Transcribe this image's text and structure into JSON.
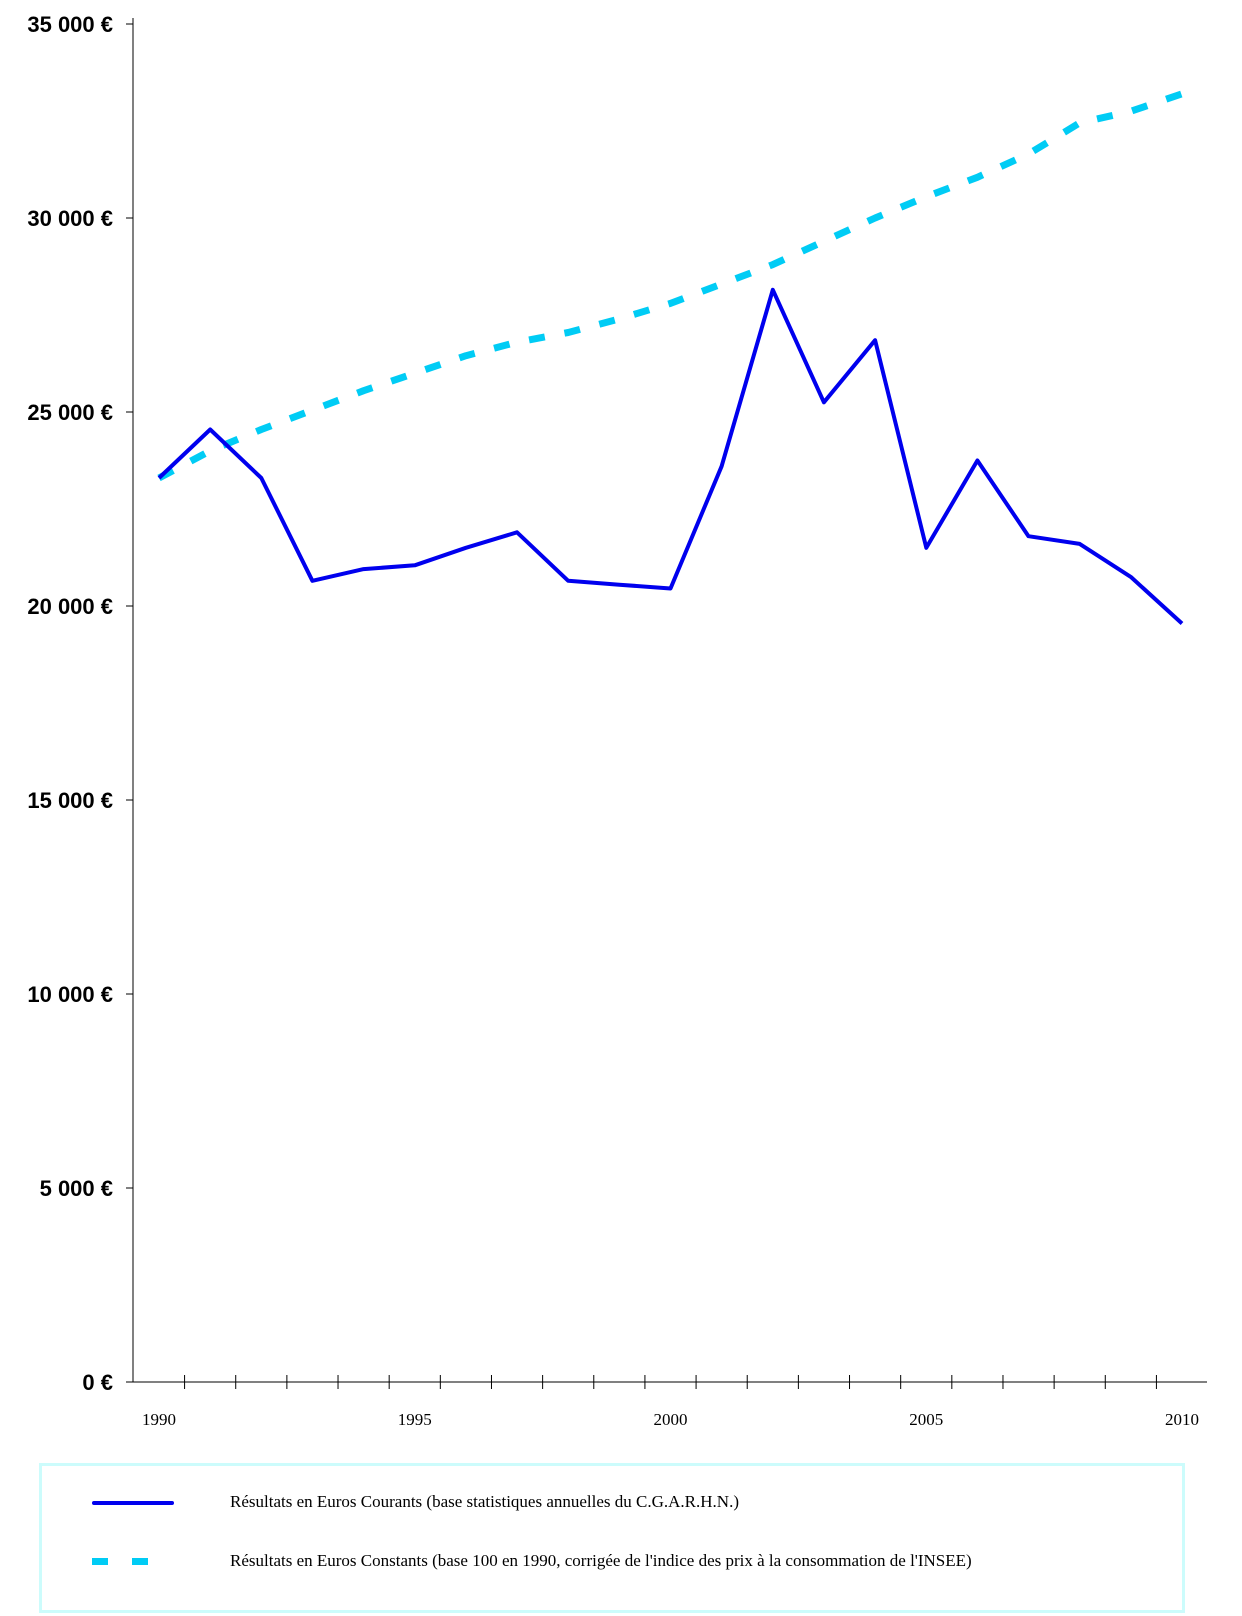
{
  "chart_data": {
    "type": "line",
    "x": [
      1990,
      1991,
      1992,
      1993,
      1994,
      1995,
      1996,
      1997,
      1998,
      1999,
      2000,
      2001,
      2002,
      2003,
      2004,
      2005,
      2006,
      2007,
      2008,
      2009,
      2010
    ],
    "x_tick_labels": [
      "1990",
      "1995",
      "2000",
      "2005",
      "2010"
    ],
    "y_tick_labels": [
      "0 €",
      "5 000 €",
      "10 000 €",
      "15 000 €",
      "20 000 €",
      "25 000 €",
      "30 000 €",
      "35 000 €"
    ],
    "ylim": [
      0,
      35000
    ],
    "y_tick_values": [
      0,
      5000,
      10000,
      15000,
      20000,
      25000,
      30000,
      35000
    ],
    "legend_placement": "bottom",
    "grid": false,
    "series": [
      {
        "name": "Résultats en Euros Courants (base statistiques annuelles du C.G.A.R.H.N.)",
        "color": "#0000ee",
        "style": "solid",
        "values": [
          23300,
          24550,
          23300,
          20650,
          20950,
          21050,
          21500,
          21900,
          20650,
          20550,
          20450,
          23600,
          28150,
          25250,
          26850,
          21500,
          23750,
          21800,
          21600,
          20750,
          19550
        ]
      },
      {
        "name": "Résultats en Euros Constants (base 100 en 1990, corrigée de l'indice des prix à la consommation de l'INSEE)",
        "color": "#00ccf5",
        "style": "dashed",
        "values": [
          23300,
          24000,
          24550,
          25050,
          25550,
          26000,
          26450,
          26800,
          27050,
          27400,
          27800,
          28300,
          28800,
          29400,
          30000,
          30550,
          31050,
          31650,
          32450,
          32750,
          33200
        ]
      }
    ]
  }
}
